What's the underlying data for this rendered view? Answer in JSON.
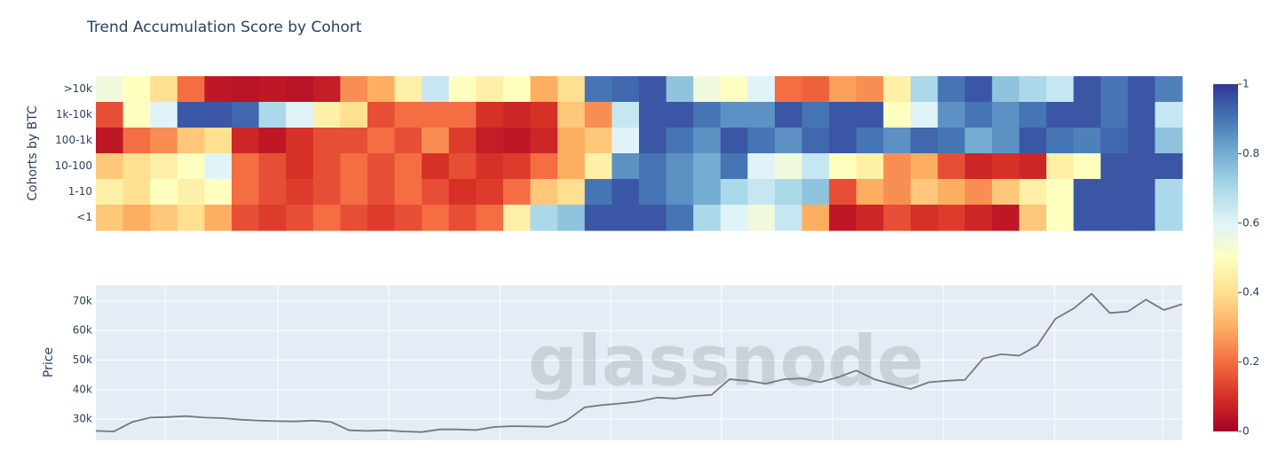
{
  "chart_data": [
    {
      "type": "heatmap",
      "title": "Trend Accumulation Score by Cohort",
      "y_label": "Cohorts by BTC",
      "categories": [
        ">10k",
        "1k-10k",
        "100-1k",
        "10-100",
        "1-10",
        "<1"
      ],
      "z": [
        [
          0.55,
          0.5,
          0.4,
          0.2,
          0.05,
          0.04,
          0.05,
          0.04,
          0.06,
          0.25,
          0.3,
          0.45,
          0.65,
          0.5,
          0.45,
          0.5,
          0.3,
          0.4,
          0.9,
          0.92,
          0.95,
          0.75,
          0.55,
          0.5,
          0.6,
          0.2,
          0.18,
          0.28,
          0.25,
          0.45,
          0.7,
          0.9,
          0.95,
          0.75,
          0.7,
          0.65,
          0.95,
          0.9,
          0.95,
          0.88
        ],
        [
          0.15,
          0.5,
          0.6,
          0.95,
          0.95,
          0.92,
          0.7,
          0.6,
          0.45,
          0.4,
          0.15,
          0.2,
          0.2,
          0.2,
          0.1,
          0.08,
          0.1,
          0.35,
          0.25,
          0.65,
          0.95,
          0.95,
          0.9,
          0.85,
          0.85,
          0.95,
          0.9,
          0.95,
          0.95,
          0.5,
          0.6,
          0.85,
          0.9,
          0.85,
          0.9,
          0.95,
          0.95,
          0.9,
          0.95,
          0.65
        ],
        [
          0.05,
          0.2,
          0.25,
          0.35,
          0.4,
          0.08,
          0.05,
          0.1,
          0.15,
          0.15,
          0.2,
          0.15,
          0.25,
          0.12,
          0.06,
          0.05,
          0.08,
          0.3,
          0.35,
          0.6,
          0.95,
          0.9,
          0.85,
          0.95,
          0.9,
          0.85,
          0.92,
          0.95,
          0.9,
          0.85,
          0.92,
          0.9,
          0.8,
          0.85,
          0.95,
          0.9,
          0.88,
          0.92,
          0.95,
          0.75
        ],
        [
          0.35,
          0.4,
          0.45,
          0.5,
          0.6,
          0.2,
          0.15,
          0.1,
          0.15,
          0.2,
          0.15,
          0.2,
          0.1,
          0.15,
          0.1,
          0.12,
          0.2,
          0.3,
          0.45,
          0.85,
          0.9,
          0.85,
          0.8,
          0.9,
          0.6,
          0.55,
          0.65,
          0.5,
          0.45,
          0.25,
          0.3,
          0.15,
          0.08,
          0.1,
          0.08,
          0.45,
          0.5,
          0.95,
          0.95,
          0.95
        ],
        [
          0.45,
          0.4,
          0.5,
          0.45,
          0.5,
          0.2,
          0.15,
          0.12,
          0.15,
          0.2,
          0.15,
          0.2,
          0.15,
          0.1,
          0.12,
          0.2,
          0.35,
          0.4,
          0.9,
          0.95,
          0.9,
          0.85,
          0.8,
          0.7,
          0.65,
          0.7,
          0.75,
          0.15,
          0.3,
          0.25,
          0.35,
          0.3,
          0.25,
          0.35,
          0.45,
          0.5,
          0.95,
          0.95,
          0.95,
          0.7
        ],
        [
          0.35,
          0.3,
          0.35,
          0.4,
          0.3,
          0.15,
          0.12,
          0.15,
          0.2,
          0.15,
          0.12,
          0.15,
          0.2,
          0.15,
          0.2,
          0.45,
          0.7,
          0.75,
          0.95,
          0.95,
          0.95,
          0.9,
          0.7,
          0.6,
          0.55,
          0.65,
          0.3,
          0.05,
          0.08,
          0.15,
          0.1,
          0.12,
          0.08,
          0.05,
          0.35,
          0.5,
          0.95,
          0.95,
          0.95,
          0.7
        ]
      ],
      "zlim": [
        0,
        1
      ],
      "zticks": [
        0,
        0.2,
        0.4,
        0.6,
        0.8,
        1
      ],
      "colorscale": [
        "#a50026",
        "#d73027",
        "#f46d43",
        "#fdae61",
        "#fee090",
        "#ffffbf",
        "#e0f3f8",
        "#abd9e9",
        "#74add1",
        "#4575b4",
        "#313695"
      ]
    },
    {
      "type": "line",
      "y_label": "Price",
      "color": "#777777",
      "grid": true,
      "watermark": "glassnode",
      "values": [
        26000,
        25800,
        29000,
        30500,
        30700,
        31000,
        30500,
        30300,
        29800,
        29500,
        29300,
        29200,
        29500,
        29000,
        26200,
        26000,
        26200,
        25800,
        25600,
        26500,
        26500,
        26300,
        27300,
        27600,
        27500,
        27400,
        29500,
        34000,
        34800,
        35300,
        36000,
        37300,
        37000,
        37800,
        38200,
        43500,
        43000,
        42000,
        43500,
        43800,
        42500,
        44200,
        46500,
        43500,
        41800,
        40200,
        42500,
        43000,
        43300,
        50500,
        52000,
        51500,
        55000,
        64000,
        67500,
        72500,
        66000,
        66500,
        70500,
        67000,
        69000
      ],
      "ylim": [
        22800,
        75400
      ],
      "yticks": [
        {
          "value": 30000,
          "label": "30k"
        },
        {
          "value": 40000,
          "label": "40k"
        },
        {
          "value": 50000,
          "label": "50k"
        },
        {
          "value": 60000,
          "label": "60k"
        },
        {
          "value": 70000,
          "label": "70k"
        }
      ]
    }
  ]
}
